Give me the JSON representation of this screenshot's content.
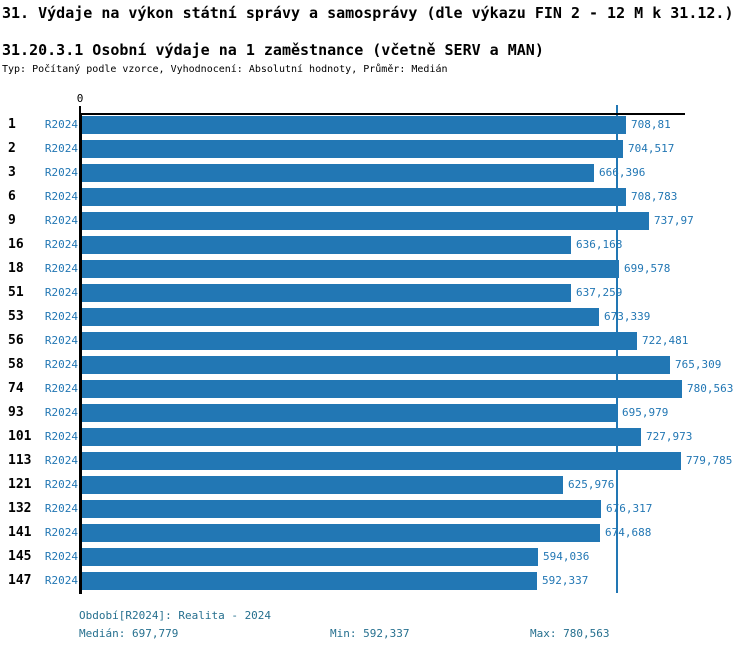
{
  "page": {
    "title": "31. Výdaje na výkon státní správy a samosprávy (dle výkazu FIN 2 - 12 M k 31.12.)",
    "subtitle": "31.20.3.1 Osobní výdaje na 1 zaměstnance (včetně SERV a MAN)",
    "meta_line": "Typ: Počítaný podle vzorce, Vyhodnocení: Absolutní hodnoty, Průměr: Medián"
  },
  "colors": {
    "bar": "#2277b4",
    "chart_text": "#2277b4",
    "median_line": "#2277b4",
    "footer_text": "#26708f",
    "axis": "#000000"
  },
  "chart_data": {
    "type": "bar",
    "orientation": "horizontal",
    "axis_zero_label": "0",
    "xlim": [
      0,
      786
    ],
    "grid": false,
    "median_line_value": 697.779,
    "categories": [
      "1",
      "2",
      "3",
      "6",
      "9",
      "16",
      "18",
      "51",
      "53",
      "56",
      "58",
      "74",
      "93",
      "101",
      "113",
      "121",
      "132",
      "141",
      "145",
      "147"
    ],
    "series": [
      {
        "name": "R2024",
        "values": [
          708.81,
          704.517,
          666.396,
          708.783,
          737.97,
          636.168,
          699.578,
          637.259,
          673.339,
          722.481,
          765.309,
          780.563,
          695.979,
          727.973,
          779.785,
          625.976,
          676.317,
          674.688,
          594.036,
          592.337
        ],
        "value_labels": [
          "708,81",
          "704,517",
          "666,396",
          "708,783",
          "737,97",
          "636,168",
          "699,578",
          "637,259",
          "673,339",
          "722,481",
          "765,309",
          "780,563",
          "695,979",
          "727,973",
          "779,785",
          "625,976",
          "676,317",
          "674,688",
          "594,036",
          "592,337"
        ]
      }
    ]
  },
  "footer": {
    "period_line": "Období[R2024]: Realita - 2024",
    "median": "Medián: 697,779",
    "min": "Min: 592,337",
    "max": "Max: 780,563"
  }
}
